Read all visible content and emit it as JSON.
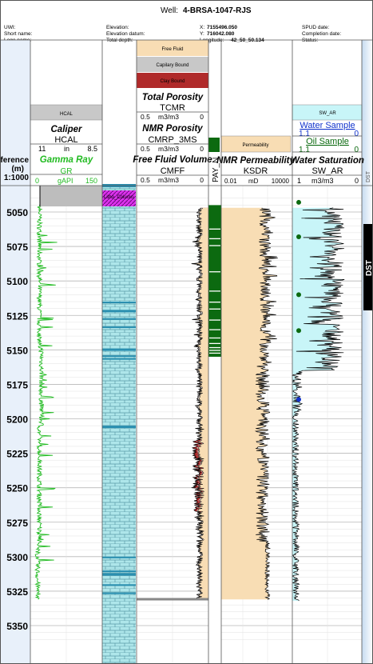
{
  "well": {
    "title_prefix": "Well:",
    "name": "4-BRSA-1047-RJS"
  },
  "header": {
    "left": [
      "UWI:",
      "Short name:",
      "Logo name:"
    ],
    "mid": [
      "Elevation:",
      "Elevation datum:",
      "Total depth:"
    ],
    "xy_labels": [
      "X:",
      "Y:",
      "Longitude:"
    ],
    "xy_values": [
      "7155496.050",
      "716042.080",
      "-42_50_50.134"
    ],
    "right": [
      "SPUD date:",
      "Completion date:",
      "Status:"
    ]
  },
  "depth_track": {
    "title_lines": [
      "Reference",
      "(m)",
      "1:1000"
    ],
    "ticks": [
      5050,
      5075,
      5100,
      5125,
      5150,
      5175,
      5200,
      5225,
      5250,
      5275,
      5300,
      5325,
      5350
    ]
  },
  "track1": {
    "box_label": "HCAL",
    "caliper": {
      "title": "Caliper",
      "mnemonic": "HCAL",
      "min": "11",
      "unit": "in",
      "max": "8.5"
    },
    "gr": {
      "title": "Gamma Ray",
      "mnemonic": "GR",
      "min": "0",
      "unit": "gAPI",
      "max": "150"
    }
  },
  "litho": {
    "label": "Litho_Column"
  },
  "track3": {
    "legend": [
      "Free Fluid",
      "Capilary Bound",
      "Clay Bound"
    ],
    "tcmr": {
      "title": "Total Porosity",
      "mnemonic": "TCMR",
      "min": "0.5",
      "unit": "m3/m3",
      "max": "0"
    },
    "cmrp": {
      "title": "NMR Porosity",
      "mnemonic": "CMRP_3MS",
      "min": "0.5",
      "unit": "m3/m3",
      "max": "0"
    },
    "cmff": {
      "title": "Free Fluid Volume",
      "mnemonic": "CMFF",
      "min": "0.5",
      "unit": "m3/m3",
      "max": "0"
    }
  },
  "pay": {
    "label": "PAY_N"
  },
  "track5": {
    "box_label": "Permeability",
    "ksdr": {
      "title": "NMR Permeability",
      "mnemonic": "KSDR",
      "min": "0.01",
      "unit": "mD",
      "max": "10000"
    }
  },
  "track6": {
    "box_label": "SW_AR",
    "water": {
      "title": "Water Sample",
      "min": "1.1",
      "max": "0"
    },
    "oil": {
      "title": "Oil Sample",
      "min": "1.1",
      "max": "0"
    },
    "sw": {
      "title": "Water Saturation",
      "mnemonic": "SW_AR",
      "min": "1",
      "unit": "m3/m3",
      "max": "0"
    }
  },
  "dst": {
    "header_label": "DST",
    "bar_label": "DST"
  },
  "samples": {
    "oil_depths": [
      5043,
      5068,
      5110,
      5136
    ],
    "water_depths": [
      5186
    ]
  },
  "colors": {
    "gr": "#22bb22",
    "caliper": "#000000",
    "litho": "#aee6ea",
    "litho_dark": "#2a8fb0",
    "free_fluid": "#f8ddb4",
    "cap_bound": "#c8c8c8",
    "clay_bound": "#b02a2a",
    "pay": "#0c6a10",
    "perm_fill": "#f8ddb4",
    "sw_fill": "#c8f5f8",
    "water_sample": "#1133cc",
    "oil_sample": "#0c6a10",
    "dst_bar": "#000000"
  }
}
